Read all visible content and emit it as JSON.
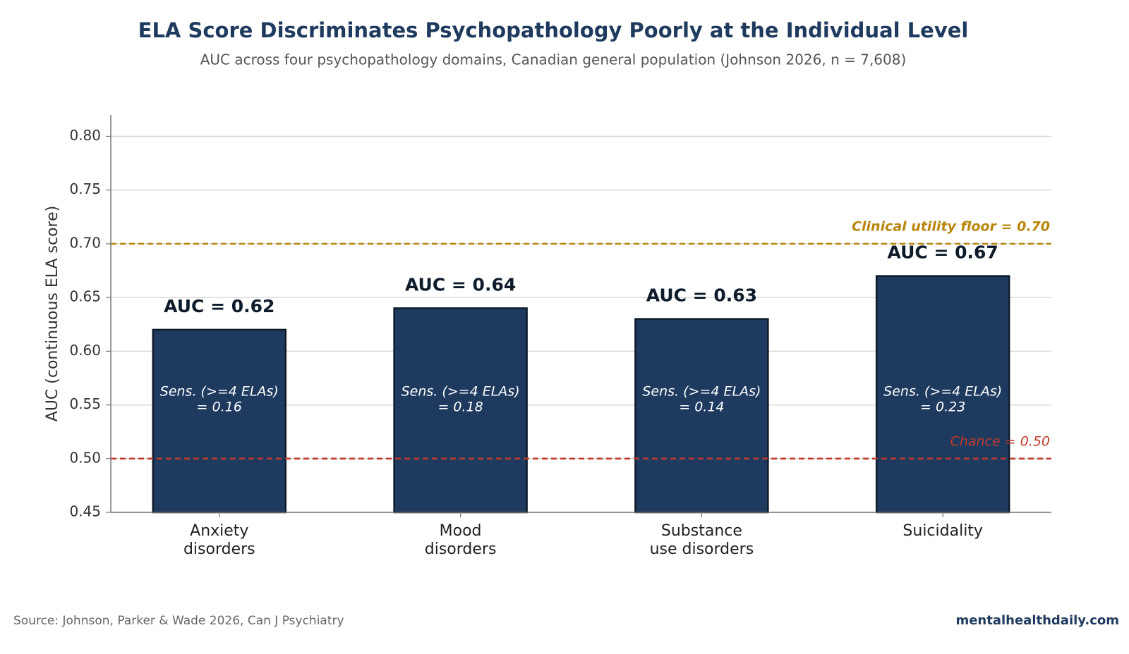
{
  "chart_data": {
    "type": "bar",
    "title": "ELA Score Discriminates Psychopathology Poorly at the Individual Level",
    "subtitle": "AUC across four psychopathology domains, Canadian general population (Johnson 2026, n = 7,608)",
    "y_label": "AUC (continuous ELA score)",
    "categories": [
      [
        "Anxiety",
        "disorders"
      ],
      [
        "Mood",
        "disorders"
      ],
      [
        "Substance",
        "use disorders"
      ],
      [
        "Suicidality"
      ]
    ],
    "values": [
      0.62,
      0.64,
      0.63,
      0.67
    ],
    "value_labels": [
      "AUC = 0.62",
      "AUC = 0.64",
      "AUC = 0.63",
      "AUC = 0.67"
    ],
    "inner_labels": [
      [
        "Sens. (>=4 ELAs)",
        "= 0.16"
      ],
      [
        "Sens. (>=4 ELAs)",
        "= 0.18"
      ],
      [
        "Sens. (>=4 ELAs)",
        "= 0.14"
      ],
      [
        "Sens. (>=4 ELAs)",
        "= 0.23"
      ]
    ],
    "color": "#1f3a5f",
    "edge_color": "#0d1b2a",
    "ylim": [
      0.45,
      0.82
    ],
    "yticks": [
      0.45,
      {
        "value": 0.5,
        "label": "0.50"
      },
      0.55,
      {
        "value": 0.6,
        "label": "0.60"
      },
      0.65,
      {
        "value": 0.7,
        "label": "0.70"
      },
      0.75,
      {
        "value": 0.8,
        "label": "0.80"
      }
    ],
    "grid": true,
    "reference_lines": [
      {
        "value": 0.7,
        "label": "Clinical utility floor = 0.70",
        "color": "#b8860b"
      },
      {
        "value": 0.5,
        "label": "Chance = 0.50",
        "color": "#c0392b"
      }
    ],
    "source": "Source: Johnson, Parker & Wade 2026, Can J Psychiatry",
    "brand": "mentalhealthdaily.com"
  }
}
